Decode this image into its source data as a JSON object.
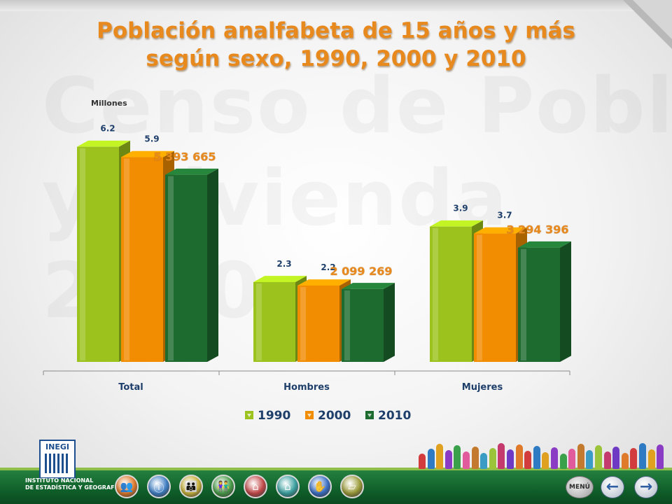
{
  "watermark": {
    "line1": "Censo de Población",
    "line2": "y Vivienda",
    "line3": "2010"
  },
  "chart_data": {
    "type": "bar",
    "title": "Población analfabeta de 15 años y más",
    "subtitle": "según sexo, 1990, 2000 y 2010",
    "ylabel": "Millones",
    "xlabel": "",
    "categories": [
      "Total",
      "Hombres",
      "Mujeres"
    ],
    "series": [
      {
        "name": "1990",
        "values": [
          6.2,
          2.3,
          3.9
        ],
        "labels": [
          "6.2",
          "2.3",
          "3.9"
        ],
        "color": "#9cc31d"
      },
      {
        "name": "2000",
        "values": [
          5.9,
          2.2,
          3.7
        ],
        "labels": [
          "5.9",
          "2.2",
          "3.7"
        ],
        "color": "#f28c00"
      },
      {
        "name": "2010",
        "values": [
          5.393665,
          2.099269,
          3.294396
        ],
        "labels": [
          "5 393 665",
          "2 099 269",
          "3 294 396"
        ],
        "color": "#1e6b2f"
      }
    ],
    "ylim": [
      0,
      7
    ],
    "grid": false,
    "legend_position": "bottom",
    "label_colors": {
      "default": "#1f3f6b",
      "highlight": "#e8891e"
    }
  },
  "footer": {
    "logo_name": "INEGI",
    "logo_caption_line1": "INSTITUTO NACIONAL",
    "logo_caption_line2": "DE ESTADÍSTICA Y GEOGRAFÍA",
    "menu_label": "MENÚ",
    "nav_icons": [
      {
        "name": "population-icon",
        "glyph": "👥",
        "color": "#e07a2b"
      },
      {
        "name": "info-icon",
        "glyph": "ⓘ",
        "color": "#3f7fc4"
      },
      {
        "name": "family-icon",
        "glyph": "👪",
        "color": "#c9b23a"
      },
      {
        "name": "people-icon",
        "glyph": "👫",
        "color": "#4a9d4a"
      },
      {
        "name": "house-icon",
        "glyph": "⌂",
        "color": "#c44a4a"
      },
      {
        "name": "dwelling-icon",
        "glyph": "⌂",
        "color": "#3aa0a0"
      },
      {
        "name": "hand-icon",
        "glyph": "✋",
        "color": "#3a6fc4"
      },
      {
        "name": "map-icon",
        "glyph": "▱",
        "color": "#9c9c3a"
      }
    ],
    "prev_glyph": "←",
    "next_glyph": "→"
  }
}
